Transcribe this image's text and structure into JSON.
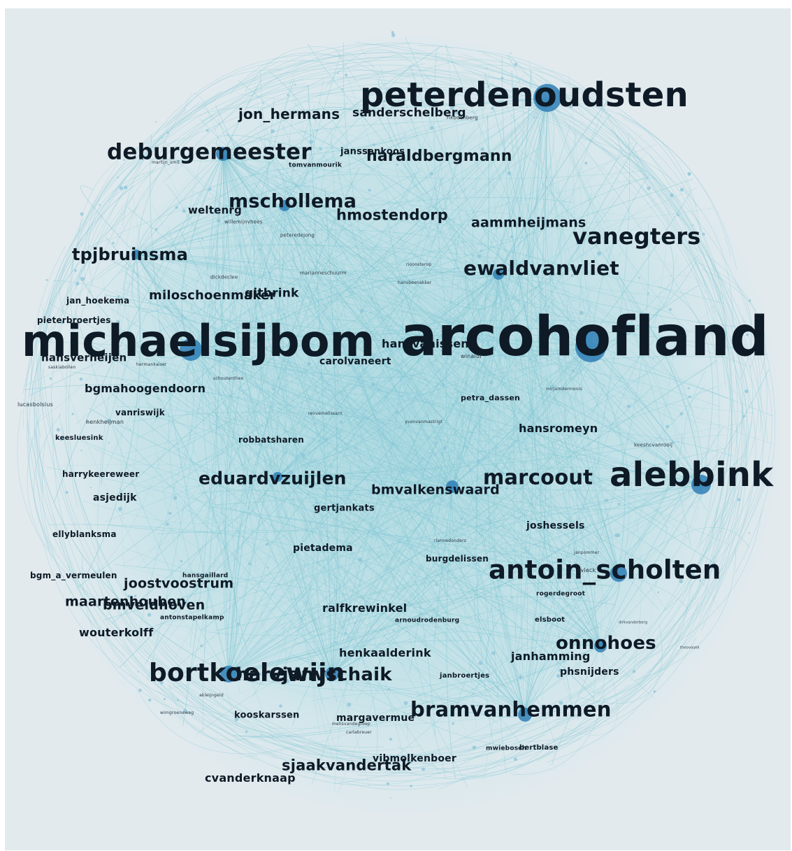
{
  "network": {
    "colors": {
      "background": "#e2eaee",
      "edge": "#7ec6d3",
      "hub": "#2f7fb6",
      "node": "#8fc6da",
      "label": "#0e1a26"
    },
    "labels": [
      {
        "id": "arcohofland",
        "text": "arcohofland",
        "tier": "huge"
      },
      {
        "id": "michaelsijbom",
        "text": "michaelsijbom",
        "tier": "xl"
      },
      {
        "id": "peterdenoudsten",
        "text": "peterdenoudsten",
        "tier": "xl"
      },
      {
        "id": "alebbink",
        "text": "alebbink",
        "tier": "xl"
      },
      {
        "id": "antoin_scholten",
        "text": "antoin_scholten",
        "tier": "lg"
      },
      {
        "id": "bortkoelewijn",
        "text": "bortkoelewijn",
        "tier": "lg"
      },
      {
        "id": "deburgemeester",
        "text": "deburgemeester",
        "tier": "lg"
      },
      {
        "id": "vanegters",
        "text": "vanegters",
        "tier": "lg"
      },
      {
        "id": "bramvanhemmen",
        "text": "bramvanhemmen",
        "tier": "md"
      },
      {
        "id": "mschollema",
        "text": "mschollema",
        "tier": "md"
      },
      {
        "id": "ewaldvanvliet",
        "text": "ewaldvanvliet",
        "tier": "md"
      },
      {
        "id": "marcoout",
        "text": "marcoout",
        "tier": "md"
      },
      {
        "id": "harvjanvschaik",
        "text": "harvjanvschaik",
        "tier": "md"
      },
      {
        "id": "onnohoes",
        "text": "onnohoes",
        "tier": "md"
      },
      {
        "id": "eduardvzuijlen",
        "text": "eduardvzuijlen",
        "tier": "md"
      },
      {
        "id": "tpjbruinsma",
        "text": "tpjbruinsma",
        "tier": "md"
      },
      {
        "id": "haraldbergmann",
        "text": "haraldbergmann",
        "tier": "md"
      },
      {
        "id": "jon_hermans",
        "text": "jon_hermans",
        "tier": "sm"
      },
      {
        "id": "sanderschelberg",
        "text": "sanderschelberg",
        "tier": "sm"
      },
      {
        "id": "hmostendorp",
        "text": "hmostendorp",
        "tier": "sm"
      },
      {
        "id": "aammheijmans",
        "text": "aammheijmans",
        "tier": "sm"
      },
      {
        "id": "sjaakvandertak",
        "text": "sjaakvandertak",
        "tier": "sm"
      },
      {
        "id": "joostvoostrum",
        "text": "joostvoostrum",
        "tier": "sm"
      },
      {
        "id": "maartenhouben",
        "text": "maartenhouben",
        "tier": "sm"
      },
      {
        "id": "bmveldhoven",
        "text": "bmveldhoven",
        "tier": "sm"
      },
      {
        "id": "bmvalkenswaard",
        "text": "bmvalkenswaard",
        "tier": "sm"
      },
      {
        "id": "miloschoenmaker",
        "text": "miloschoenmaker",
        "tier": "sm"
      },
      {
        "id": "gitbrink",
        "text": "gitbrink",
        "tier": "sm"
      },
      {
        "id": "hansromeyn",
        "text": "hansromeyn",
        "tier": "xs"
      },
      {
        "id": "bgmahoogendoorn",
        "text": "bgmahoogendoorn",
        "tier": "xs"
      },
      {
        "id": "ralfkrewinkel",
        "text": "ralfkrewinkel",
        "tier": "xs"
      },
      {
        "id": "henkaalderink",
        "text": "henkaalderink",
        "tier": "xs"
      },
      {
        "id": "janhamming",
        "text": "janhamming",
        "tier": "xs"
      },
      {
        "id": "phsnijders",
        "text": "phsnijders",
        "tier": "xs"
      },
      {
        "id": "cvanderknaap",
        "text": "cvanderknaap",
        "tier": "xs"
      },
      {
        "id": "vibmolkenboer",
        "text": "vibmolkenboer",
        "tier": "xs"
      },
      {
        "id": "margavermue",
        "text": "margavermue",
        "tier": "xs"
      },
      {
        "id": "kooskarssen",
        "text": "kooskarssen",
        "tier": "xs"
      },
      {
        "id": "wouterkolff",
        "text": "wouterkolff",
        "tier": "xs"
      },
      {
        "id": "weltenrg",
        "text": "weltenrg",
        "tier": "xs"
      },
      {
        "id": "hansverheijen",
        "text": "hansverheijen",
        "tier": "xs"
      },
      {
        "id": "carolvaneert",
        "text": "carolvaneert",
        "tier": "xs"
      },
      {
        "id": "hansvanissen",
        "text": "hansvanissen",
        "tier": "xs"
      },
      {
        "id": "joshessels",
        "text": "joshessels",
        "tier": "xs"
      },
      {
        "id": "pietadema",
        "text": "pietadema",
        "tier": "xs"
      },
      {
        "id": "gertjankats",
        "text": "gertjankats",
        "tier": "xs"
      },
      {
        "id": "janssenkoos",
        "text": "janssenkoos",
        "tier": "xs"
      },
      {
        "id": "pieterbroertjes",
        "text": "pieterbroertjes",
        "tier": "xxs"
      },
      {
        "id": "jan_hoekema",
        "text": "jan_hoekema",
        "tier": "xxs"
      },
      {
        "id": "vanriswijk",
        "text": "vanriswijk",
        "tier": "xxs"
      },
      {
        "id": "robbatsharen",
        "text": "robbatsharen",
        "tier": "xxs"
      },
      {
        "id": "harrykeereweer",
        "text": "harrykeereweer",
        "tier": "xxs"
      },
      {
        "id": "asjedijk",
        "text": "asjedijk",
        "tier": "xxs"
      },
      {
        "id": "ellyblanksma",
        "text": "ellyblanksma",
        "tier": "xxs"
      },
      {
        "id": "bgm_a_vermeulen",
        "text": "bgm_a_vermeulen",
        "tier": "xxs"
      },
      {
        "id": "burgdelissen",
        "text": "burgdelissen",
        "tier": "xxs"
      },
      {
        "id": "petra_dassen",
        "text": "petra_dassen",
        "tier": "xxs"
      },
      {
        "id": "keesluesink",
        "text": "keesluesink",
        "tier": "xxs"
      },
      {
        "id": "hansgaillard",
        "text": "hansgaillard",
        "tier": "xxs"
      },
      {
        "id": "elsboot",
        "text": "elsboot",
        "tier": "xxs"
      },
      {
        "id": "rogerdegroot",
        "text": "rogerdegroot",
        "tier": "xxs"
      },
      {
        "id": "bertblase",
        "text": "bertblase",
        "tier": "xxs"
      },
      {
        "id": "janbroertjes",
        "text": "janbroertjes",
        "tier": "xxs"
      },
      {
        "id": "arnoudrodenburg",
        "text": "arnoudrodenburg",
        "tier": "xxs"
      },
      {
        "id": "antonstapelkamp",
        "text": "antonstapelkamp",
        "tier": "xxs"
      },
      {
        "id": "tomvanmourik",
        "text": "tomvanmourik",
        "tier": "xxs"
      },
      {
        "id": "mwiebosch",
        "text": "mwiebosch",
        "tier": "xxs"
      },
      {
        "id": "lucasbolsius",
        "text": "lucasbolsius",
        "tier": "tiny"
      },
      {
        "id": "henkheijman",
        "text": "henkheijman",
        "tier": "tiny"
      },
      {
        "id": "willemijnvhees",
        "text": "willemijnvhees",
        "tier": "tiny"
      },
      {
        "id": "peteredejong",
        "text": "peteredejong",
        "tier": "tiny"
      },
      {
        "id": "mariannneschuurm",
        "text": "marianneschuurm",
        "tier": "tiny"
      },
      {
        "id": "dickdeclee",
        "text": "dickdeclee",
        "tier": "tiny"
      },
      {
        "id": "hansbeenakker",
        "text": "hansbeenakker",
        "tier": "tiny"
      },
      {
        "id": "riooosterop",
        "text": "riooosterop",
        "tier": "tiny"
      },
      {
        "id": "schoutentheo",
        "text": "schoutentheo",
        "tier": "tiny"
      },
      {
        "id": "hermankaiser",
        "text": "hermankaiser",
        "tier": "tiny"
      },
      {
        "id": "saskiabollen",
        "text": "saskiabollen",
        "tier": "tiny"
      },
      {
        "id": "reiniemelissant",
        "text": "reiniemelissant",
        "tier": "tiny"
      },
      {
        "id": "yvonvanmastrigt",
        "text": "yvonvanmastrigt",
        "tier": "tiny"
      },
      {
        "id": "mirjamdermonis",
        "text": "mirjamdermonis",
        "tier": "tiny"
      },
      {
        "id": "keeshcvanrooij",
        "text": "keeshcvanrooij",
        "tier": "tiny"
      },
      {
        "id": "riannedonders",
        "text": "riannedonders",
        "tier": "tiny"
      },
      {
        "id": "janpommer",
        "text": "janpommer",
        "tier": "tiny"
      },
      {
        "id": "rvleck",
        "text": "rvleck",
        "tier": "tiny"
      },
      {
        "id": "akleijngeld",
        "text": "akleijngeld",
        "tier": "tiny"
      },
      {
        "id": "wimgroeneweg",
        "text": "wimgroeneweg",
        "tier": "tiny"
      },
      {
        "id": "melisvandegroep",
        "text": "melisvandegroep",
        "tier": "tiny"
      },
      {
        "id": "carlabreuer",
        "text": "carlabreuer",
        "tier": "tiny"
      },
      {
        "id": "dirkvanderberg",
        "text": "dirkvanderberg",
        "tier": "tiny"
      },
      {
        "id": "theovasek",
        "text": "theovasek",
        "tier": "tiny"
      },
      {
        "id": "martijn_smit",
        "text": "martijn_smit",
        "tier": "tiny"
      },
      {
        "id": "rikbdenberg",
        "text": "rikbdenberg",
        "tier": "tiny"
      },
      {
        "id": "winaldi",
        "text": "winaldi",
        "tier": "tiny"
      }
    ]
  }
}
